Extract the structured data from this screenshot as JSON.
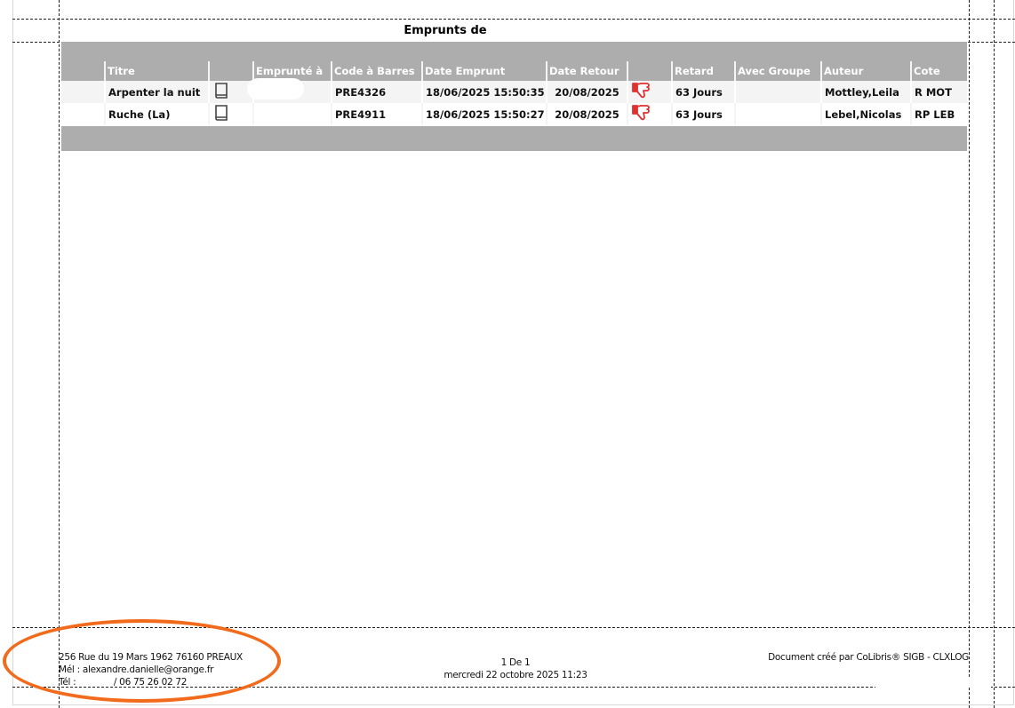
{
  "report": {
    "title": "Emprunts de"
  },
  "table": {
    "headers": [
      "",
      "Titre",
      "",
      "Emprunté à",
      "Code à Barres",
      "Date Emprunt",
      "Date Retour",
      "",
      "Retard",
      "Avec Groupe",
      "Auteur",
      "Cote"
    ],
    "rows": [
      {
        "titre": "Arpenter la nuit",
        "type_icon": "book-icon",
        "emprunte_a": "",
        "code": "PRE4326",
        "date_emprunt": "18/06/2025 15:50:35",
        "date_retour": "20/08/2025",
        "status_icon": "thumbs-down-icon",
        "retard": "63 Jours",
        "groupe": "",
        "auteur": "Mottley,Leila",
        "cote": "R MOT"
      },
      {
        "titre": "Ruche (La)",
        "type_icon": "book-icon",
        "emprunte_a": "",
        "code": "PRE4911",
        "date_emprunt": "18/06/2025 15:50:27",
        "date_retour": "20/08/2025",
        "status_icon": "thumbs-down-icon",
        "retard": "63 Jours",
        "groupe": "",
        "auteur": "Lebel,Nicolas",
        "cote": "RP LEB"
      }
    ]
  },
  "footer": {
    "address": "256 Rue du 19 Mars 1962  76160 PREAUX",
    "email": "Mél : alexandre.danielle@orange.fr",
    "phone": "Tél :              / 06 75 26 02 72",
    "page": "1 De 1",
    "date": "mercredi 22 octobre 2025 11:23",
    "credit": "Document créé par CoLibris® SIGB - CLXLOG"
  },
  "colors": {
    "header_gray": "#adadad",
    "annotation": "#f26a1b",
    "icon_red": "#e03030"
  }
}
